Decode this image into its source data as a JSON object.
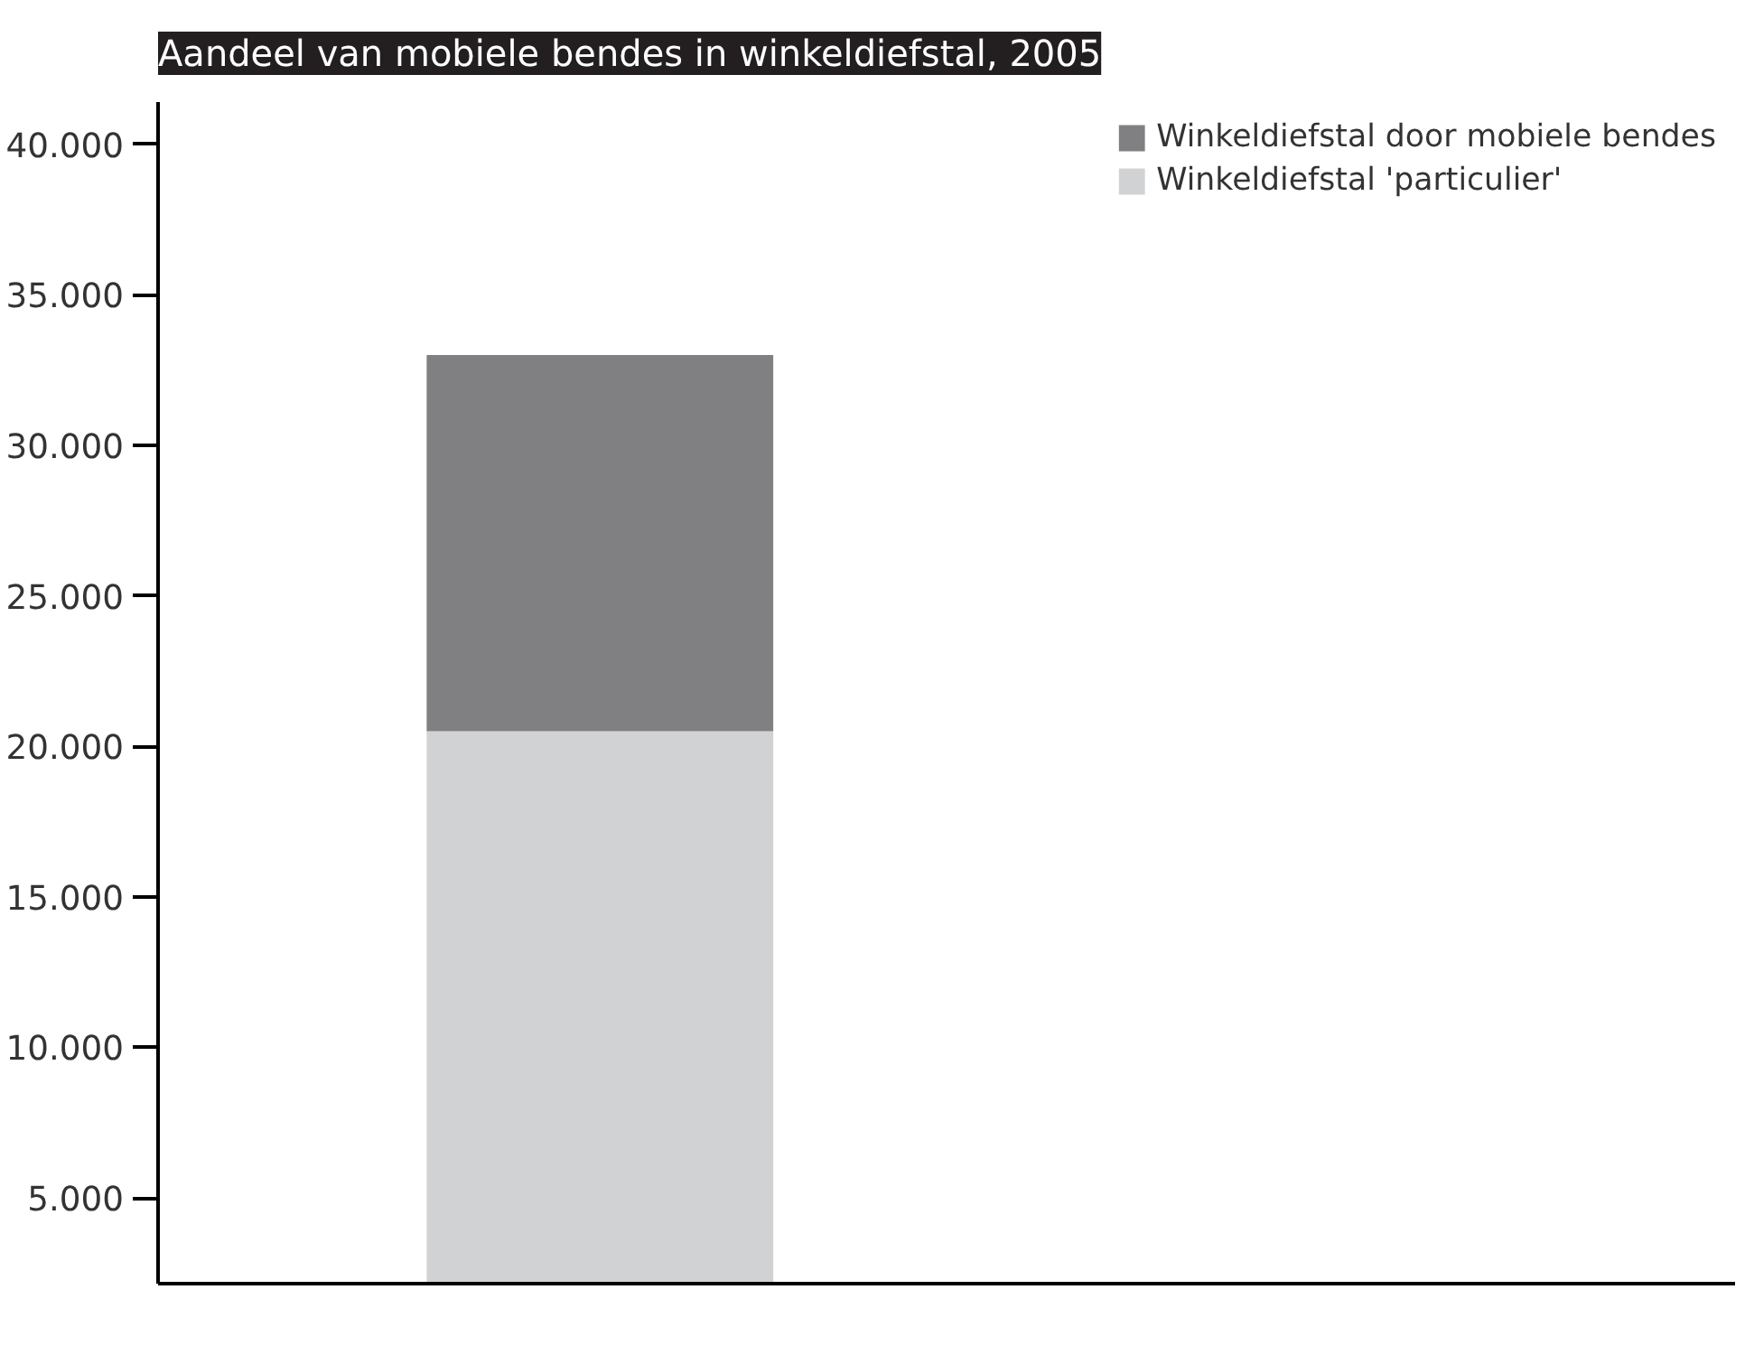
{
  "chart_data": {
    "type": "bar",
    "title": "Aandeel van mobiele bendes in winkeldiefstal, 2005",
    "stacked": true,
    "categories": [
      null
    ],
    "series": [
      {
        "name": "Winkeldiefstal 'particulier'",
        "color": "#d1d2d4",
        "values": [
          20500
        ]
      },
      {
        "name": "Winkeldiefstal door mobiele bendes",
        "color": "#808083",
        "values": [
          12500
        ]
      }
    ],
    "ylim": [
      2150,
      41400
    ],
    "yticks": [
      {
        "value": 5000,
        "label": "5.000"
      },
      {
        "value": 10000,
        "label": "10.000"
      },
      {
        "value": 15000,
        "label": "15.000"
      },
      {
        "value": 20000,
        "label": "20.000"
      },
      {
        "value": 25000,
        "label": "25.000"
      },
      {
        "value": 30000,
        "label": "30.000"
      },
      {
        "value": 35000,
        "label": "35.000"
      },
      {
        "value": 40000,
        "label": "40.000"
      }
    ],
    "tick_labels": "y",
    "grid": false,
    "legend": "top right"
  }
}
